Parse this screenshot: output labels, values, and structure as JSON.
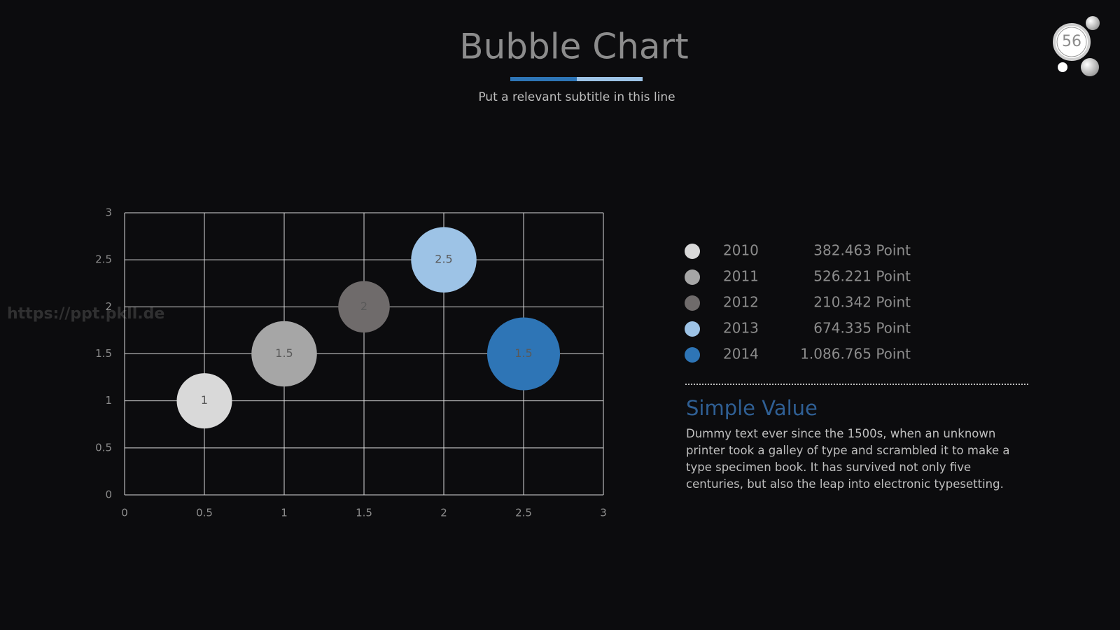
{
  "slide_number": "56",
  "watermark": "https://ppt.pkll.de",
  "chart_data": {
    "type": "bubble",
    "title": "Bubble Chart",
    "subtitle": "Put a relevant subtitle in this line",
    "xlim": [
      0,
      3
    ],
    "ylim": [
      0,
      3
    ],
    "xticks": [
      0,
      0.5,
      1,
      1.5,
      2,
      2.5,
      3
    ],
    "yticks": [
      0,
      0.5,
      1,
      1.5,
      2,
      2.5,
      3
    ],
    "grid": true,
    "series": [
      {
        "name": "2010",
        "color": "#d9d9d9",
        "x": [
          0.5
        ],
        "values": [
          1
        ],
        "sizes": [
          15
        ],
        "legend_value": "382.463 Point"
      },
      {
        "name": "2011",
        "color": "#a6a6a6",
        "x": [
          1
        ],
        "values": [
          1.5
        ],
        "sizes": [
          21
        ],
        "legend_value": "526.221 Point"
      },
      {
        "name": "2012",
        "color": "#6f6b6b",
        "x": [
          1.5
        ],
        "values": [
          2
        ],
        "sizes": [
          13
        ],
        "legend_value": "210.342 Point"
      },
      {
        "name": "2013",
        "color": "#9dc3e6",
        "x": [
          2
        ],
        "values": [
          2.5
        ],
        "sizes": [
          21
        ],
        "legend_value": "674.335 Point"
      },
      {
        "name": "2014",
        "color": "#2e75b6",
        "x": [
          2.5
        ],
        "values": [
          1.5
        ],
        "sizes": [
          26
        ],
        "legend_value": "1.086.765 Point"
      }
    ]
  },
  "side_panel": {
    "heading": "Simple Value",
    "text": "Dummy text ever since the 1500s, when an unknown printer took a galley of type and scrambled it to make a type specimen book. It has survived not only five centuries, but also the leap into electronic typesetting."
  }
}
